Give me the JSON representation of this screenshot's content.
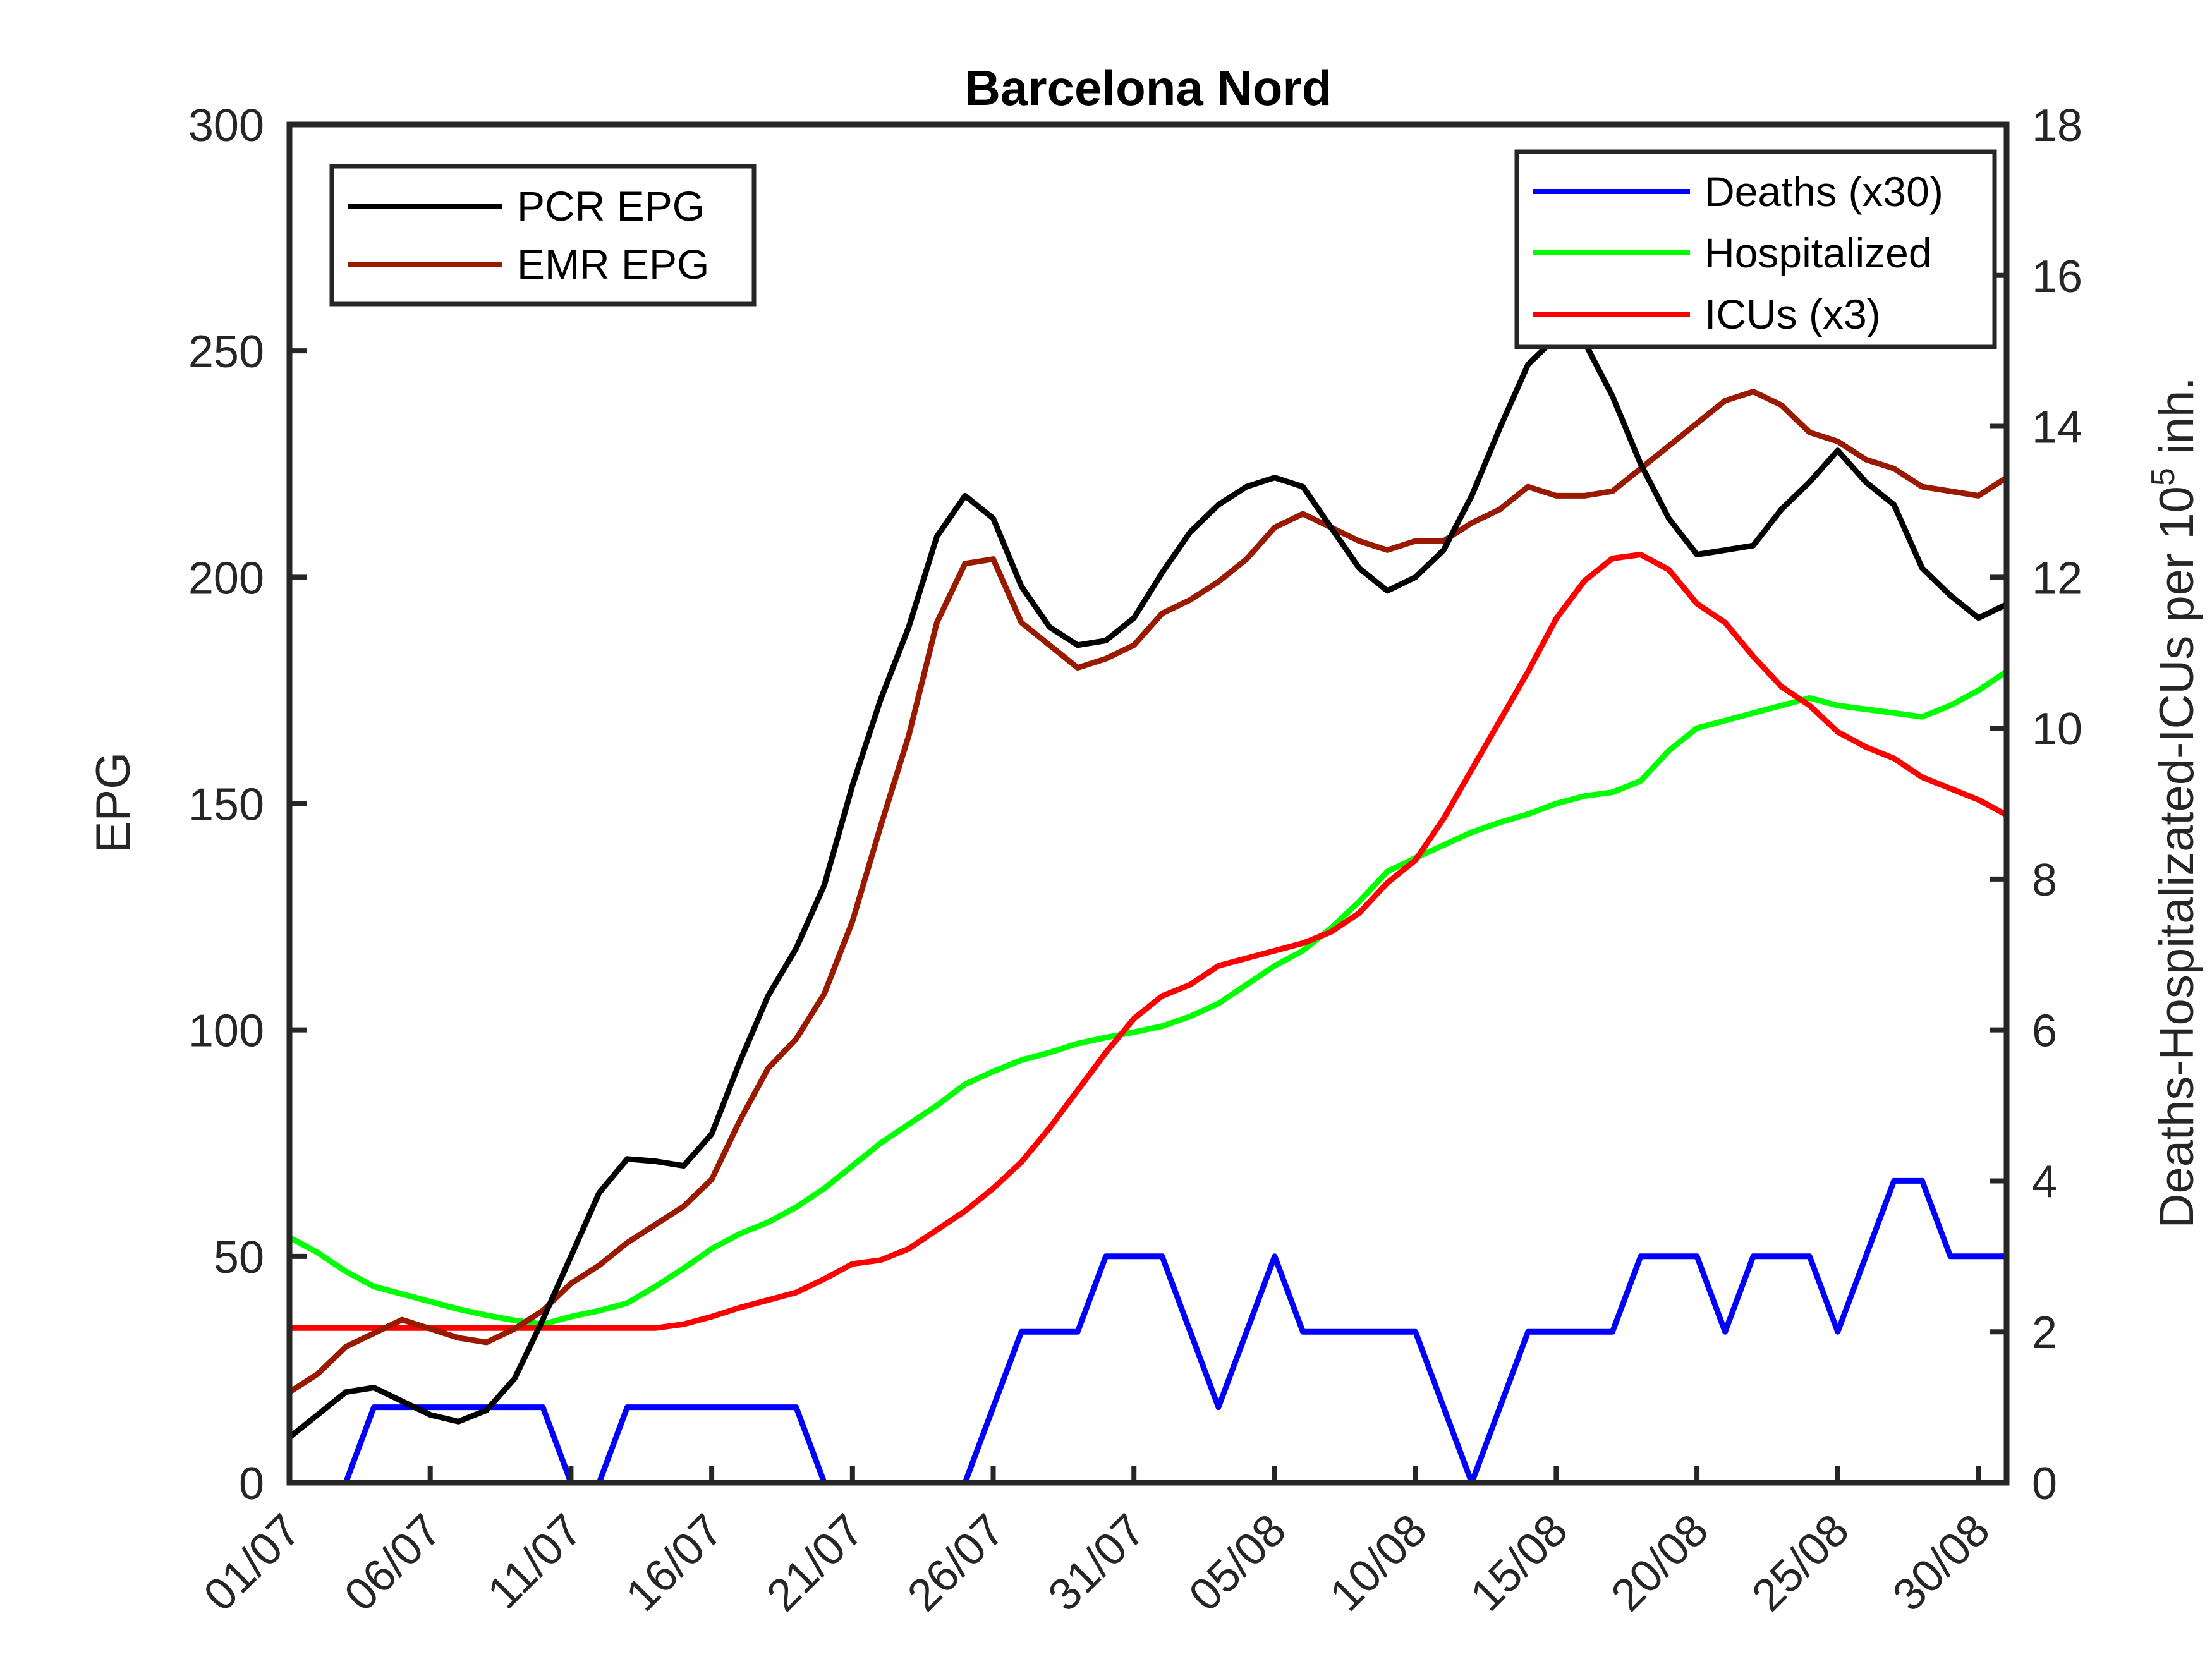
{
  "chart_data": {
    "type": "line",
    "title": "Barcelona Nord",
    "ylabel_left": "EPG",
    "ylabel_right_main": "Deaths-Hospitalizated-ICUs per 10",
    "ylabel_right_sup": "5",
    "ylabel_right_tail": " inh.",
    "ylim_left": [
      0,
      300
    ],
    "ylim_right": [
      0,
      18
    ],
    "yticks_left": [
      "0",
      "50",
      "100",
      "150",
      "200",
      "250",
      "300"
    ],
    "yticks_right": [
      "0",
      "2",
      "4",
      "6",
      "8",
      "10",
      "12",
      "14",
      "16",
      "18"
    ],
    "x_start_date": "01/07",
    "x_range_days": [
      0,
      61
    ],
    "xticks": [
      "01/07",
      "06/07",
      "11/07",
      "16/07",
      "21/07",
      "26/07",
      "31/07",
      "05/08",
      "10/08",
      "15/08",
      "20/08",
      "25/08",
      "30/08"
    ],
    "grid": false,
    "legend_left": {
      "placement": "top-left",
      "entries": [
        {
          "name": "PCR EPG",
          "color": "#000000"
        },
        {
          "name": "EMR EPG",
          "color": "#991a00"
        }
      ]
    },
    "legend_right": {
      "placement": "top-right",
      "entries": [
        {
          "name": "Deaths (x30)",
          "color": "#0000ff"
        },
        {
          "name": "Hospitalized",
          "color": "#00ff00"
        },
        {
          "name": "ICUs (x3)",
          "color": "#ff0000"
        }
      ]
    },
    "series": [
      {
        "name": "PCR EPG",
        "axis": "left",
        "color": "#000000",
        "values": [
          10,
          15,
          20,
          21,
          18,
          15,
          13.5,
          16,
          23,
          36,
          50,
          64,
          71.5,
          71,
          70,
          77,
          93,
          107.5,
          118,
          132,
          154,
          173,
          189,
          209,
          218,
          213,
          198,
          189,
          185,
          186,
          191,
          201,
          210,
          216,
          220,
          222,
          220,
          211,
          202,
          197,
          200,
          206,
          218,
          233,
          247,
          253,
          252,
          240,
          225,
          213,
          205,
          206,
          207,
          215,
          221,
          228,
          221,
          216,
          202,
          196,
          191,
          194
        ]
      },
      {
        "name": "EMR EPG",
        "axis": "left",
        "color": "#991a00",
        "values": [
          20,
          24,
          30,
          33,
          36,
          34,
          32,
          31,
          34,
          38,
          44,
          48,
          53,
          57,
          61,
          67,
          80,
          91.5,
          98,
          108,
          124,
          145,
          165,
          190,
          203,
          204,
          190,
          185,
          180,
          182,
          185,
          192,
          195,
          199,
          204,
          211,
          214,
          211,
          208,
          206,
          208,
          208,
          212,
          215,
          220,
          218,
          218,
          219,
          224,
          229,
          234,
          239,
          241,
          238,
          232,
          230,
          226,
          224,
          220,
          219,
          218,
          222
        ]
      },
      {
        "name": "Deaths (x30)",
        "axis": "right",
        "color": "#0000ff",
        "values": [
          0,
          0,
          0,
          1,
          1,
          1,
          1,
          1,
          1,
          1,
          0,
          0,
          1,
          1,
          1,
          1,
          1,
          1,
          1,
          0,
          0,
          0,
          0,
          0,
          0,
          1,
          2,
          2,
          2,
          3,
          3,
          3,
          2,
          1,
          2,
          3,
          2,
          2,
          2,
          2,
          2,
          1,
          0,
          1,
          2,
          2,
          2,
          2,
          3,
          3,
          3,
          2,
          3,
          3,
          3,
          2,
          3,
          4,
          4,
          3,
          3,
          3
        ]
      },
      {
        "name": "Hospitalized",
        "axis": "right",
        "color": "#00ff00",
        "values": [
          3.25,
          3.05,
          2.8,
          2.6,
          2.5,
          2.4,
          2.3,
          2.22,
          2.15,
          2.1,
          2.2,
          2.28,
          2.38,
          2.6,
          2.84,
          3.1,
          3.3,
          3.45,
          3.65,
          3.9,
          4.2,
          4.5,
          4.75,
          5,
          5.28,
          5.45,
          5.6,
          5.7,
          5.82,
          5.9,
          5.97,
          6.05,
          6.18,
          6.35,
          6.6,
          6.85,
          7.05,
          7.35,
          7.7,
          8.1,
          8.28,
          8.45,
          8.62,
          8.75,
          8.86,
          9,
          9.1,
          9.15,
          9.3,
          9.7,
          10,
          10.1,
          10.2,
          10.3,
          10.4,
          10.3,
          10.25,
          10.2,
          10.15,
          10.3,
          10.5,
          10.75
        ]
      },
      {
        "name": "ICUs (x3)",
        "axis": "right",
        "color": "#ff0000",
        "values": [
          2.05,
          2.05,
          2.05,
          2.05,
          2.05,
          2.05,
          2.05,
          2.05,
          2.05,
          2.05,
          2.05,
          2.05,
          2.05,
          2.05,
          2.1,
          2.2,
          2.32,
          2.42,
          2.52,
          2.7,
          2.9,
          2.95,
          3.1,
          3.35,
          3.6,
          3.9,
          4.25,
          4.7,
          5.2,
          5.7,
          6.15,
          6.45,
          6.6,
          6.85,
          6.95,
          7.05,
          7.15,
          7.3,
          7.55,
          7.95,
          8.25,
          8.8,
          9.45,
          10.1,
          10.75,
          11.45,
          11.95,
          12.25,
          12.3,
          12.1,
          11.65,
          11.4,
          10.95,
          10.55,
          10.3,
          9.95,
          9.75,
          9.6,
          9.35,
          9.2,
          9.05,
          8.85
        ]
      }
    ]
  }
}
